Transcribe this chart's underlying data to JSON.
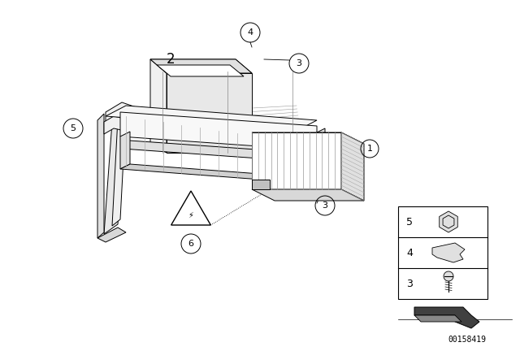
{
  "bg_color": "#ffffff",
  "lc": "#000000",
  "lw": 0.7,
  "watermark": "00158419",
  "fig_w": 6.4,
  "fig_h": 4.48,
  "dpi": 100
}
